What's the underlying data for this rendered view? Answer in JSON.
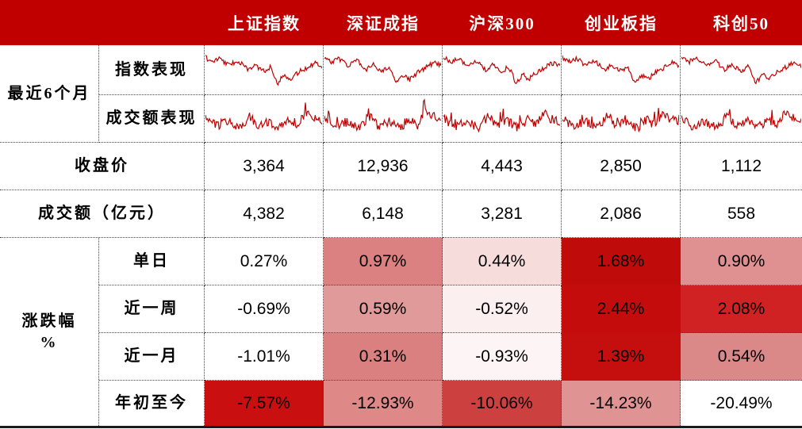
{
  "header": {
    "columns": [
      "上证指数",
      "深证成指",
      "沪深300",
      "创业板指",
      "科创50"
    ]
  },
  "row_labels": {
    "period_group": "最近6个月",
    "index_perf": "指数表现",
    "turnover_perf": "成交额表现",
    "close": "收盘价",
    "turnover": "成交额（亿元）",
    "change_group_line1": "涨跌幅",
    "change_group_line2": "%",
    "daily": "单日",
    "week": "近一周",
    "month": "近一月",
    "ytd": "年初至今"
  },
  "close_row": {
    "values": [
      "3,364",
      "12,936",
      "4,443",
      "2,850",
      "1,112"
    ]
  },
  "turnover_row": {
    "values": [
      "4,382",
      "6,148",
      "3,281",
      "2,086",
      "558"
    ]
  },
  "changes": {
    "daily": {
      "values": [
        "0.27%",
        "0.97%",
        "0.44%",
        "1.68%",
        "0.90%"
      ],
      "colors": [
        "#FFFFFF",
        "#DC8181",
        "#F7DCDC",
        "#C00B0B",
        "#DF9090"
      ]
    },
    "week": {
      "values": [
        "-0.69%",
        "0.59%",
        "-0.52%",
        "2.44%",
        "2.08%"
      ],
      "colors": [
        "#FFFFFF",
        "#E19A9A",
        "#FBEFEF",
        "#C40C0C",
        "#D02222"
      ]
    },
    "month": {
      "values": [
        "-1.01%",
        "0.31%",
        "-0.93%",
        "1.39%",
        "0.54%"
      ],
      "colors": [
        "#FFFFFF",
        "#DB8080",
        "#FDF5F5",
        "#C50F0F",
        "#DA8888"
      ]
    },
    "ytd": {
      "values": [
        "-7.57%",
        "-12.93%",
        "-10.06%",
        "-14.23%",
        "-20.49%"
      ],
      "colors": [
        "#C90F0F",
        "#DE8888",
        "#CC4040",
        "#E09393",
        "#FFFFFF"
      ]
    }
  },
  "colors": {
    "header_bg": "#C00000",
    "spark_line": "#C00000",
    "heat_strong": "#C40C0C",
    "border_dotted": "#444444",
    "bottom_border": "#1A1A1A"
  },
  "chart_data": {
    "type": "table",
    "title": "",
    "columns": [
      "上证指数",
      "深证成指",
      "沪深300",
      "创业板指",
      "科创50"
    ],
    "rows": [
      {
        "label": "收盘价",
        "values": [
          3364,
          12936,
          4443,
          2850,
          1112
        ]
      },
      {
        "label": "成交额（亿元）",
        "values": [
          4382,
          6148,
          3281,
          2086,
          558
        ]
      },
      {
        "label": "涨跌幅% 单日",
        "values": [
          0.27,
          0.97,
          0.44,
          1.68,
          0.9
        ]
      },
      {
        "label": "涨跌幅% 近一周",
        "values": [
          -0.69,
          0.59,
          -0.52,
          2.44,
          2.08
        ]
      },
      {
        "label": "涨跌幅% 近一月",
        "values": [
          -1.01,
          0.31,
          -0.93,
          1.39,
          0.54
        ]
      },
      {
        "label": "涨跌幅% 年初至今",
        "values": [
          -7.57,
          -12.93,
          -10.06,
          -14.23,
          -20.49
        ]
      }
    ],
    "sparklines": {
      "period": "最近6个月",
      "series": [
        "指数表现",
        "成交额表现"
      ],
      "index_shape": "decline-with-deep-dip-then-partial-recovery",
      "turnover_shape": "spiky-noise-dip-then-rise",
      "line_color": "#C00000"
    },
    "heatmap_note": "涨跌幅 cells shaded per-row: higher value = darker red"
  }
}
